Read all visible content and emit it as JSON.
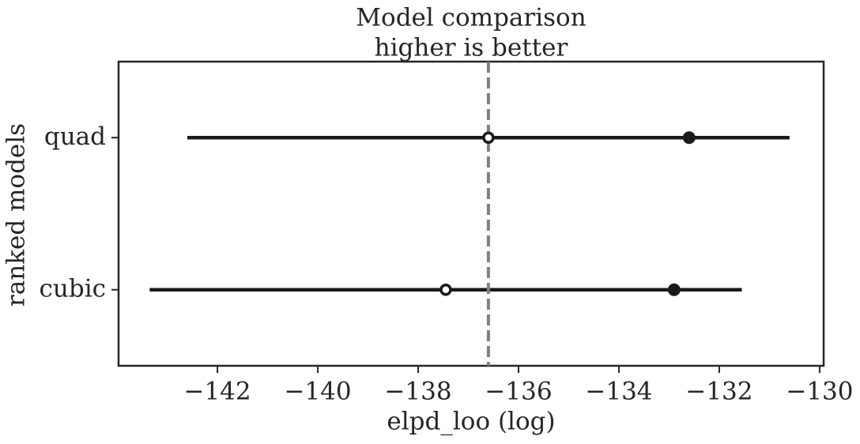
{
  "chart_data": {
    "type": "compare",
    "title": "Model comparison",
    "subtitle": "higher is better",
    "xlabel": "elpd_loo (log)",
    "ylabel": "ranked models",
    "categories": [
      "quad",
      "cubic"
    ],
    "elpd": [
      -136.6,
      -137.45
    ],
    "se": [
      6.0,
      5.9
    ],
    "insample": [
      -132.6,
      -132.9
    ],
    "reference": -136.6,
    "xlim": [
      -143.97,
      -129.92
    ],
    "xticks": [
      {
        "value": -142,
        "label": "−142"
      },
      {
        "value": -140,
        "label": "−140"
      },
      {
        "value": -138,
        "label": "−138"
      },
      {
        "value": -136,
        "label": "−136"
      },
      {
        "value": -134,
        "label": "−134"
      },
      {
        "value": -132,
        "label": "−132"
      },
      {
        "value": -130,
        "label": "−130"
      }
    ],
    "color": "#1a1a1a",
    "reference_color": "#808080"
  }
}
